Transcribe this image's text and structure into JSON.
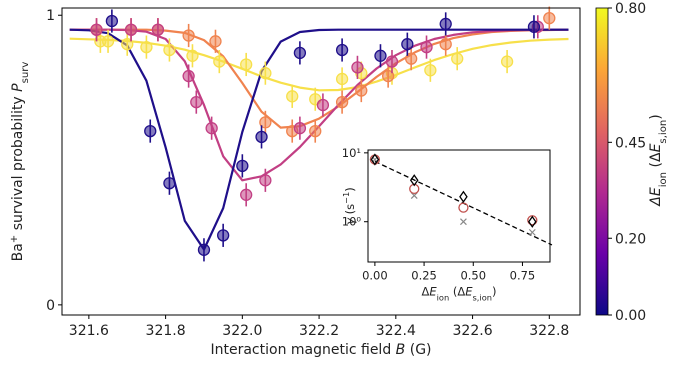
{
  "chart_data": [
    {
      "type": "scatter",
      "xlabel": [
        {
          "t": "Interaction magnetic field "
        },
        {
          "i": "B"
        },
        {
          "t": " (G)"
        }
      ],
      "ylabel": [
        {
          "t": "Ba"
        },
        {
          "sup": "+"
        },
        {
          "t": " survival probability "
        },
        {
          "i": "P"
        },
        {
          "sub": "surv"
        }
      ],
      "xlim": [
        321.53,
        322.88
      ],
      "ylim": [
        -0.035,
        1.025
      ],
      "xticks": [
        321.6,
        321.8,
        {
          "value": 322,
          "label": "322.0"
        },
        322.2,
        322.4,
        322.6,
        322.8
      ],
      "yticks": [
        0,
        1
      ],
      "fit_x": [
        321.55,
        321.6,
        321.65,
        321.7,
        321.75,
        321.8,
        321.85,
        321.9,
        321.95,
        322.0,
        322.05,
        322.1,
        322.15,
        322.2,
        322.25,
        322.3,
        322.35,
        322.4,
        322.45,
        322.5,
        322.55,
        322.6,
        322.65,
        322.7,
        322.75,
        322.8,
        322.85
      ],
      "series": [
        {
          "color": "#f7e04a",
          "x": [
            321.63,
            321.65,
            321.7,
            321.75,
            321.81,
            321.87,
            321.94,
            322.01,
            322.06,
            322.13,
            322.19,
            322.26,
            322.31,
            322.39,
            322.49,
            322.56,
            322.69
          ],
          "values": [
            0.91,
            0.91,
            0.9,
            0.89,
            0.88,
            0.86,
            0.84,
            0.83,
            0.8,
            0.72,
            0.71,
            0.78,
            0.8,
            0.8,
            0.81,
            0.85,
            0.84
          ],
          "errors": [
            0.04,
            0.04,
            0.04,
            0.04,
            0.04,
            0.04,
            0.04,
            0.04,
            0.04,
            0.04,
            0.04,
            0.04,
            0.04,
            0.04,
            0.04,
            0.04,
            0.04
          ],
          "fit": [
            0.919,
            0.917,
            0.915,
            0.911,
            0.905,
            0.895,
            0.881,
            0.862,
            0.84,
            0.815,
            0.789,
            0.767,
            0.75,
            0.741,
            0.742,
            0.752,
            0.771,
            0.794,
            0.82,
            0.845,
            0.866,
            0.884,
            0.897,
            0.906,
            0.912,
            0.916,
            0.918
          ]
        },
        {
          "color": "#f0834f",
          "x": [
            321.62,
            321.71,
            321.78,
            321.86,
            321.93,
            322.06,
            322.13,
            322.19,
            322.26,
            322.31,
            322.38,
            322.44,
            322.53,
            322.8
          ],
          "values": [
            0.95,
            0.95,
            0.95,
            0.93,
            0.91,
            0.63,
            0.6,
            0.6,
            0.7,
            0.74,
            0.79,
            0.85,
            0.9,
            0.99
          ],
          "errors": [
            0.04,
            0.04,
            0.04,
            0.04,
            0.04,
            0.04,
            0.04,
            0.04,
            0.04,
            0.04,
            0.04,
            0.04,
            0.04,
            0.04
          ],
          "fit": [
            0.95,
            0.95,
            0.95,
            0.95,
            0.95,
            0.947,
            0.939,
            0.914,
            0.858,
            0.766,
            0.667,
            0.612,
            0.617,
            0.643,
            0.685,
            0.735,
            0.787,
            0.834,
            0.872,
            0.901,
            0.921,
            0.934,
            0.942,
            0.946,
            0.948,
            0.949,
            0.95
          ]
        },
        {
          "color": "#c23f84",
          "x": [
            321.62,
            321.71,
            321.78,
            321.86,
            321.88,
            321.92,
            322.01,
            322.06,
            322.15,
            322.21,
            322.3,
            322.39,
            322.48,
            322.77
          ],
          "values": [
            0.95,
            0.95,
            0.95,
            0.79,
            0.7,
            0.61,
            0.38,
            0.43,
            0.61,
            0.69,
            0.82,
            0.84,
            0.89,
            0.96
          ],
          "errors": [
            0.04,
            0.04,
            0.04,
            0.04,
            0.04,
            0.04,
            0.04,
            0.04,
            0.04,
            0.04,
            0.04,
            0.04,
            0.04,
            0.04
          ],
          "fit": [
            0.95,
            0.95,
            0.95,
            0.949,
            0.943,
            0.918,
            0.841,
            0.69,
            0.513,
            0.43,
            0.444,
            0.485,
            0.545,
            0.617,
            0.69,
            0.759,
            0.816,
            0.862,
            0.895,
            0.918,
            0.932,
            0.941,
            0.945,
            0.948,
            0.949,
            0.95,
            0.95
          ]
        },
        {
          "color": "#1f0f8a",
          "x": [
            321.66,
            321.76,
            321.81,
            321.9,
            321.95,
            322.0,
            322.05,
            322.15,
            322.26,
            322.36,
            322.43,
            322.53,
            322.76
          ],
          "values": [
            0.98,
            0.6,
            0.42,
            0.19,
            0.24,
            0.48,
            0.58,
            0.87,
            0.88,
            0.86,
            0.9,
            0.97,
            0.96
          ],
          "errors": [
            0.04,
            0.04,
            0.04,
            0.04,
            0.04,
            0.04,
            0.04,
            0.04,
            0.04,
            0.04,
            0.04,
            0.04,
            0.04
          ],
          "fit": [
            0.95,
            0.948,
            0.938,
            0.896,
            0.774,
            0.544,
            0.29,
            0.191,
            0.334,
            0.597,
            0.806,
            0.909,
            0.942,
            0.949,
            0.95,
            0.95,
            0.95,
            0.95,
            0.95,
            0.95,
            0.95,
            0.95,
            0.95,
            0.95,
            0.95,
            0.95,
            0.95
          ]
        }
      ],
      "colorbar": {
        "colormap": "plasma",
        "clim": [
          0,
          0.8
        ],
        "ticks": [
          {
            "value": 0,
            "label": "0.00"
          },
          {
            "value": 0.2,
            "label": "0.20"
          },
          {
            "value": 0.45,
            "label": "0.45"
          },
          {
            "value": 0.8,
            "label": "0.80"
          }
        ],
        "label": [
          {
            "i": "ΔE"
          },
          {
            "sub": "ion"
          },
          {
            "t": "  (Δ"
          },
          {
            "i": "E"
          },
          {
            "sub": "s,ion"
          },
          {
            "t": ")"
          }
        ]
      }
    },
    {
      "type": "scatter",
      "xlabel": [
        {
          "t": "Δ"
        },
        {
          "i": "E"
        },
        {
          "sub": "ion"
        },
        {
          "t": " (Δ"
        },
        {
          "i": "E"
        },
        {
          "sub": "s,ion"
        },
        {
          "t": ")"
        }
      ],
      "ylabel": [
        {
          "i": "γ"
        },
        {
          "t": " (s"
        },
        {
          "sup": "−1"
        },
        {
          "t": ")"
        }
      ],
      "xlim": [
        -0.035,
        0.89
      ],
      "ylim": [
        0.26,
        11
      ],
      "ylog": true,
      "xticks": [
        {
          "value": 0,
          "label": "0.00"
        },
        {
          "value": 0.25,
          "label": "0.25"
        },
        {
          "value": 0.5,
          "label": "0.50"
        },
        {
          "value": 0.75,
          "label": "0.75"
        }
      ],
      "yticks": [
        {
          "value": 1,
          "label": "10⁰"
        },
        {
          "value": 10,
          "label": "10¹"
        }
      ],
      "line": {
        "x": [
          0,
          0.9
        ],
        "values": [
          7.5,
          0.46
        ],
        "color": "#000000",
        "dashed": true
      },
      "series": [
        {
          "marker": "x",
          "color": "#888888",
          "x": [
            0,
            0.2,
            0.45,
            0.8
          ],
          "values": [
            8,
            2.4,
            1.0,
            0.7
          ]
        },
        {
          "marker": "circle",
          "color": "#c0504d",
          "x": [
            0,
            0.2,
            0.45,
            0.8
          ],
          "values": [
            8,
            3,
            1.6,
            1.05
          ]
        },
        {
          "marker": "diamond",
          "color": "#000000",
          "x": [
            0,
            0.2,
            0.45,
            0.8
          ],
          "values": [
            8,
            4,
            2.3,
            1.0
          ]
        }
      ]
    }
  ]
}
